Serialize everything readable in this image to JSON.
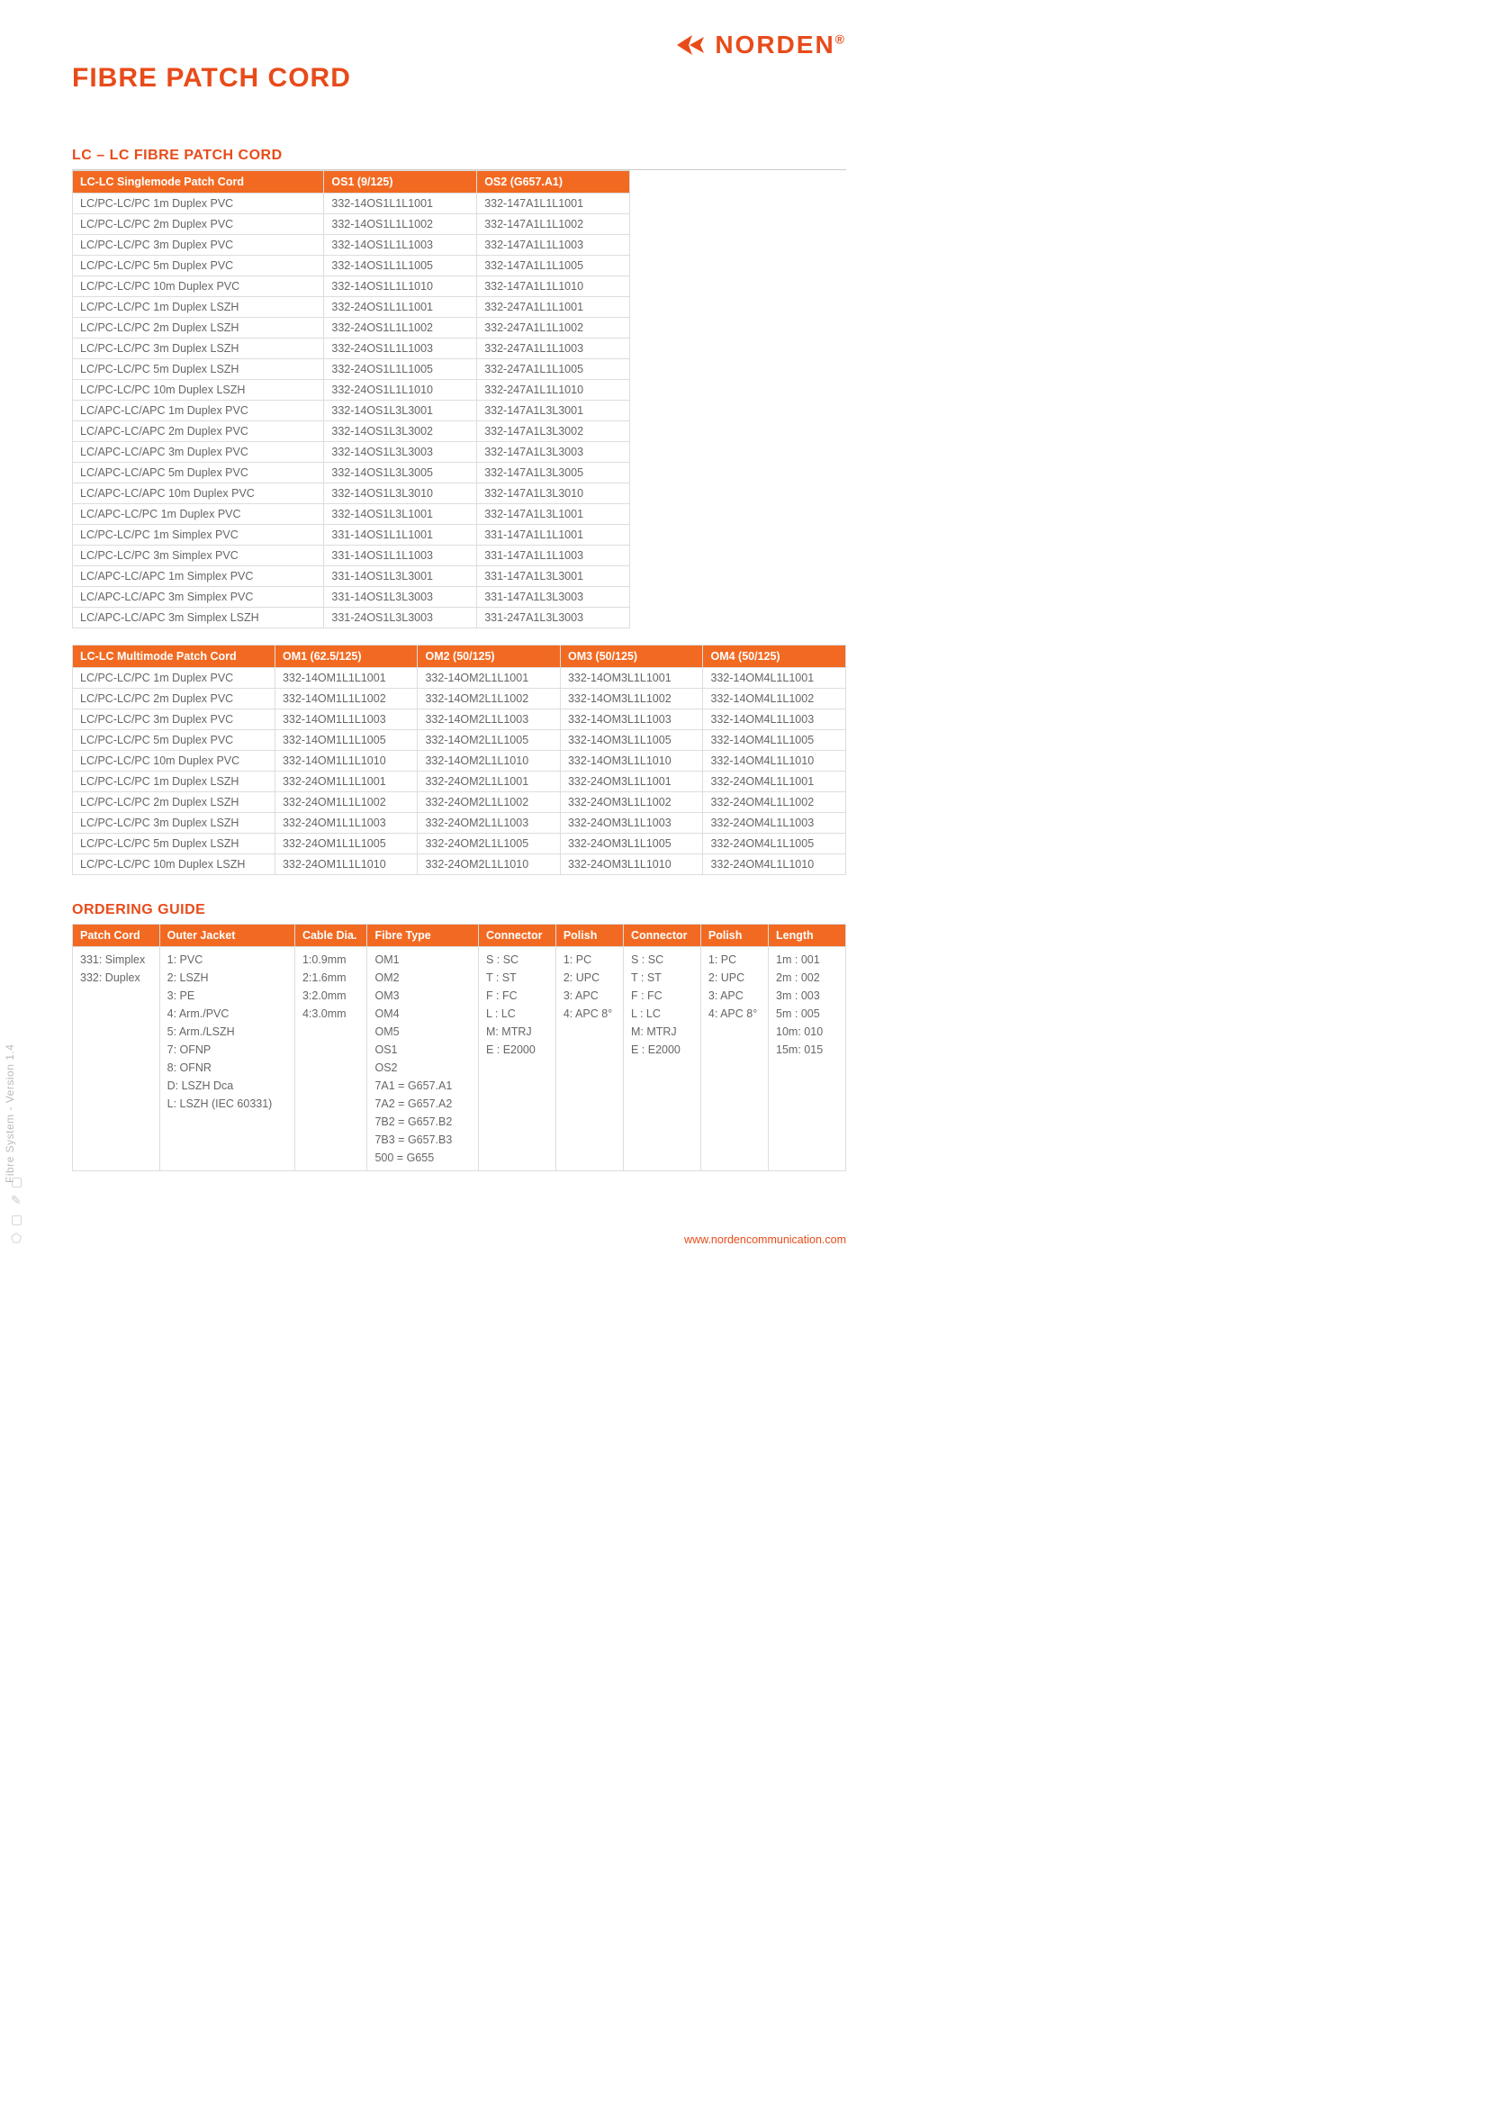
{
  "brand": {
    "name": "NORDEN",
    "reg": "®",
    "color": "#e84b1a"
  },
  "page_title": "FIBRE PATCH CORD",
  "section1_title": "LC – LC FIBRE PATCH CORD",
  "table_sm": {
    "headers": [
      "LC-LC Singlemode Patch Cord",
      "OS1 (9/125)",
      "OS2 (G657.A1)"
    ],
    "rows": [
      [
        "LC/PC-LC/PC 1m Duplex PVC",
        "332-14OS1L1L1001",
        "332-147A1L1L1001"
      ],
      [
        "LC/PC-LC/PC 2m Duplex PVC",
        "332-14OS1L1L1002",
        "332-147A1L1L1002"
      ],
      [
        "LC/PC-LC/PC 3m Duplex PVC",
        "332-14OS1L1L1003",
        "332-147A1L1L1003"
      ],
      [
        "LC/PC-LC/PC 5m Duplex PVC",
        "332-14OS1L1L1005",
        "332-147A1L1L1005"
      ],
      [
        "LC/PC-LC/PC 10m Duplex PVC",
        "332-14OS1L1L1010",
        "332-147A1L1L1010"
      ],
      [
        "LC/PC-LC/PC 1m Duplex LSZH",
        "332-24OS1L1L1001",
        "332-247A1L1L1001"
      ],
      [
        "LC/PC-LC/PC 2m Duplex LSZH",
        "332-24OS1L1L1002",
        "332-247A1L1L1002"
      ],
      [
        "LC/PC-LC/PC 3m Duplex LSZH",
        "332-24OS1L1L1003",
        "332-247A1L1L1003"
      ],
      [
        "LC/PC-LC/PC 5m Duplex LSZH",
        "332-24OS1L1L1005",
        "332-247A1L1L1005"
      ],
      [
        "LC/PC-LC/PC 10m Duplex LSZH",
        "332-24OS1L1L1010",
        "332-247A1L1L1010"
      ],
      [
        "LC/APC-LC/APC  1m Duplex PVC",
        "332-14OS1L3L3001",
        "332-147A1L3L3001"
      ],
      [
        "LC/APC-LC/APC  2m Duplex PVC",
        "332-14OS1L3L3002",
        "332-147A1L3L3002"
      ],
      [
        "LC/APC-LC/APC  3m Duplex PVC",
        "332-14OS1L3L3003",
        "332-147A1L3L3003"
      ],
      [
        "LC/APC-LC/APC  5m Duplex PVC",
        "332-14OS1L3L3005",
        "332-147A1L3L3005"
      ],
      [
        "LC/APC-LC/APC  10m Duplex PVC",
        "332-14OS1L3L3010",
        "332-147A1L3L3010"
      ],
      [
        "LC/APC-LC/PC  1m Duplex PVC",
        "332-14OS1L3L1001",
        "332-147A1L3L1001"
      ],
      [
        "LC/PC-LC/PC  1m Simplex PVC",
        "331-14OS1L1L1001",
        "331-147A1L1L1001"
      ],
      [
        "LC/PC-LC/PC  3m Simplex PVC",
        "331-14OS1L1L1003",
        "331-147A1L1L1003"
      ],
      [
        "LC/APC-LC/APC  1m Simplex PVC",
        "331-14OS1L3L3001",
        "331-147A1L3L3001"
      ],
      [
        "LC/APC-LC/APC  3m Simplex PVC",
        "331-14OS1L3L3003",
        "331-147A1L3L3003"
      ],
      [
        "LC/APC-LC/APC  3m Simplex LSZH",
        "331-24OS1L3L3003",
        "331-247A1L3L3003"
      ]
    ]
  },
  "table_mm": {
    "headers": [
      "LC-LC Multimode Patch Cord",
      "OM1 (62.5/125)",
      "OM2 (50/125)",
      "OM3 (50/125)",
      "OM4 (50/125)"
    ],
    "rows": [
      [
        "LC/PC-LC/PC 1m Duplex PVC",
        "332-14OM1L1L1001",
        "332-14OM2L1L1001",
        "332-14OM3L1L1001",
        "332-14OM4L1L1001"
      ],
      [
        "LC/PC-LC/PC 2m Duplex PVC",
        "332-14OM1L1L1002",
        "332-14OM2L1L1002",
        "332-14OM3L1L1002",
        "332-14OM4L1L1002"
      ],
      [
        "LC/PC-LC/PC 3m Duplex PVC",
        "332-14OM1L1L1003",
        "332-14OM2L1L1003",
        "332-14OM3L1L1003",
        "332-14OM4L1L1003"
      ],
      [
        "LC/PC-LC/PC 5m Duplex PVC",
        "332-14OM1L1L1005",
        "332-14OM2L1L1005",
        "332-14OM3L1L1005",
        "332-14OM4L1L1005"
      ],
      [
        "LC/PC-LC/PC 10m Duplex PVC",
        "332-14OM1L1L1010",
        "332-14OM2L1L1010",
        "332-14OM3L1L1010",
        "332-14OM4L1L1010"
      ],
      [
        "LC/PC-LC/PC 1m Duplex LSZH",
        "332-24OM1L1L1001",
        "332-24OM2L1L1001",
        "332-24OM3L1L1001",
        "332-24OM4L1L1001"
      ],
      [
        "LC/PC-LC/PC 2m Duplex LSZH",
        "332-24OM1L1L1002",
        "332-24OM2L1L1002",
        "332-24OM3L1L1002",
        "332-24OM4L1L1002"
      ],
      [
        "LC/PC-LC/PC 3m Duplex LSZH",
        "332-24OM1L1L1003",
        "332-24OM2L1L1003",
        "332-24OM3L1L1003",
        "332-24OM4L1L1003"
      ],
      [
        "LC/PC-LC/PC 5m Duplex LSZH",
        "332-24OM1L1L1005",
        "332-24OM2L1L1005",
        "332-24OM3L1L1005",
        "332-24OM4L1L1005"
      ],
      [
        "LC/PC-LC/PC 10m Duplex LSZH",
        "332-24OM1L1L1010",
        "332-24OM2L1L1010",
        "332-24OM3L1L1010",
        "332-24OM4L1L1010"
      ]
    ]
  },
  "ordering_title": "ORDERING GUIDE",
  "table_ord": {
    "headers": [
      "Patch Cord",
      "Outer Jacket",
      "Cable Dia.",
      "Fibre Type",
      "Connector",
      "Polish",
      "Connector",
      "Polish",
      "Length"
    ],
    "rows": [
      [
        "331: Simplex\n332: Duplex",
        "1: PVC\n2: LSZH\n3: PE\n4: Arm./PVC\n5: Arm./LSZH\n7: OFNP\n8: OFNR\nD: LSZH Dca\nL: LSZH (IEC 60331)",
        "1:0.9mm\n2:1.6mm\n3:2.0mm\n4:3.0mm",
        "OM1\nOM2\nOM3\nOM4\nOM5\nOS1\nOS2\n7A1 = G657.A1\n7A2 = G657.A2\n7B2 = G657.B2\n7B3 = G657.B3\n500 = G655",
        "S : SC\nT : ST\nF : FC\nL : LC\nM: MTRJ\nE : E2000",
        "1: PC\n2: UPC\n3: APC\n4: APC 8°",
        "S : SC\nT : ST\nF : FC\nL : LC\nM: MTRJ\nE : E2000",
        "1: PC\n2: UPC\n3: APC\n4: APC 8°",
        "1m  : 001\n2m  : 002\n3m  : 003\n5m  : 005\n10m: 010\n15m: 015"
      ]
    ]
  },
  "footer_url": "www.nordencommunication.com",
  "side_text": "Fibre System - Version 1.4"
}
